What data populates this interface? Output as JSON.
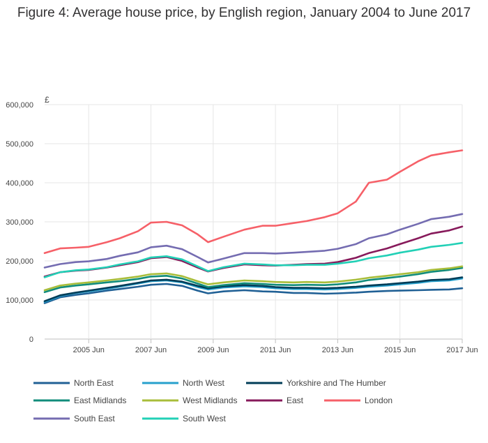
{
  "chart_data": {
    "type": "line",
    "title": "Figure 4: Average house price, by English region, January 2004 to June 2017",
    "ylabel": "£",
    "xlabel": "",
    "ylim": [
      0,
      600000
    ],
    "xlim": [
      "2004-01",
      "2017-06"
    ],
    "x_ticks": [
      {
        "x": "2005-06",
        "label": "2005 Jun"
      },
      {
        "x": "2007-06",
        "label": "2007 Jun"
      },
      {
        "x": "2009-06",
        "label": "2009 Jun"
      },
      {
        "x": "2011-06",
        "label": "2011 Jun"
      },
      {
        "x": "2013-06",
        "label": "2013 Jun"
      },
      {
        "x": "2015-06",
        "label": "2015 Jun"
      },
      {
        "x": "2017-06",
        "label": "2017 Jun"
      }
    ],
    "y_ticks": [
      {
        "value": 0,
        "label": "0"
      },
      {
        "value": 100000,
        "label": "100,000"
      },
      {
        "value": 200000,
        "label": "200,000"
      },
      {
        "value": 300000,
        "label": "300,000"
      },
      {
        "value": 400000,
        "label": "400,000"
      },
      {
        "value": 500000,
        "label": "500,000"
      },
      {
        "value": 600000,
        "label": "600,000"
      }
    ],
    "grid": true,
    "legend_position": "bottom",
    "series": [
      {
        "name": "North East",
        "color": "#206095",
        "points": [
          [
            "2004-01",
            92000
          ],
          [
            "2004-07",
            107000
          ],
          [
            "2005-01",
            113000
          ],
          [
            "2005-06",
            117000
          ],
          [
            "2006-01",
            124000
          ],
          [
            "2006-06",
            128000
          ],
          [
            "2007-01",
            134000
          ],
          [
            "2007-06",
            139000
          ],
          [
            "2007-12",
            141000
          ],
          [
            "2008-06",
            136000
          ],
          [
            "2008-12",
            124000
          ],
          [
            "2009-04",
            117000
          ],
          [
            "2009-10",
            122000
          ],
          [
            "2010-06",
            125000
          ],
          [
            "2011-01",
            122000
          ],
          [
            "2011-06",
            121000
          ],
          [
            "2012-01",
            118000
          ],
          [
            "2012-06",
            118000
          ],
          [
            "2013-01",
            116000
          ],
          [
            "2013-06",
            117000
          ],
          [
            "2014-01",
            119000
          ],
          [
            "2014-06",
            121000
          ],
          [
            "2015-01",
            123000
          ],
          [
            "2015-06",
            124000
          ],
          [
            "2016-01",
            125000
          ],
          [
            "2016-06",
            126000
          ],
          [
            "2017-01",
            127000
          ],
          [
            "2017-06",
            130000
          ]
        ]
      },
      {
        "name": "North West",
        "color": "#27a0cc",
        "points": [
          [
            "2004-01",
            95000
          ],
          [
            "2004-07",
            110000
          ],
          [
            "2005-01",
            118000
          ],
          [
            "2005-06",
            122000
          ],
          [
            "2006-01",
            129000
          ],
          [
            "2006-06",
            134000
          ],
          [
            "2007-01",
            142000
          ],
          [
            "2007-06",
            148000
          ],
          [
            "2007-12",
            150000
          ],
          [
            "2008-06",
            145000
          ],
          [
            "2008-12",
            133000
          ],
          [
            "2009-04",
            127000
          ],
          [
            "2009-10",
            132000
          ],
          [
            "2010-06",
            135000
          ],
          [
            "2011-01",
            133000
          ],
          [
            "2011-06",
            130000
          ],
          [
            "2012-01",
            128000
          ],
          [
            "2012-06",
            128000
          ],
          [
            "2013-01",
            127000
          ],
          [
            "2013-06",
            128000
          ],
          [
            "2014-01",
            131000
          ],
          [
            "2014-06",
            134000
          ],
          [
            "2015-01",
            137000
          ],
          [
            "2015-06",
            140000
          ],
          [
            "2016-01",
            144000
          ],
          [
            "2016-06",
            148000
          ],
          [
            "2017-01",
            150000
          ],
          [
            "2017-06",
            155000
          ]
        ]
      },
      {
        "name": "Yorkshire and The Humber",
        "color": "#003c57",
        "points": [
          [
            "2004-01",
            97000
          ],
          [
            "2004-07",
            112000
          ],
          [
            "2005-01",
            119000
          ],
          [
            "2005-06",
            124000
          ],
          [
            "2006-01",
            131000
          ],
          [
            "2006-06",
            136000
          ],
          [
            "2007-01",
            144000
          ],
          [
            "2007-06",
            150000
          ],
          [
            "2007-12",
            152000
          ],
          [
            "2008-06",
            147000
          ],
          [
            "2008-12",
            136000
          ],
          [
            "2009-04",
            130000
          ],
          [
            "2009-10",
            135000
          ],
          [
            "2010-06",
            138000
          ],
          [
            "2011-01",
            136000
          ],
          [
            "2011-06",
            133000
          ],
          [
            "2012-01",
            131000
          ],
          [
            "2012-06",
            131000
          ],
          [
            "2013-01",
            130000
          ],
          [
            "2013-06",
            131000
          ],
          [
            "2014-01",
            134000
          ],
          [
            "2014-06",
            137000
          ],
          [
            "2015-01",
            140000
          ],
          [
            "2015-06",
            143000
          ],
          [
            "2016-01",
            147000
          ],
          [
            "2016-06",
            151000
          ],
          [
            "2017-01",
            153000
          ],
          [
            "2017-06",
            158000
          ]
        ]
      },
      {
        "name": "East Midlands",
        "color": "#118c7b",
        "points": [
          [
            "2004-01",
            120000
          ],
          [
            "2004-07",
            132000
          ],
          [
            "2005-01",
            137000
          ],
          [
            "2005-06",
            140000
          ],
          [
            "2006-01",
            145000
          ],
          [
            "2006-06",
            148000
          ],
          [
            "2007-01",
            154000
          ],
          [
            "2007-06",
            160000
          ],
          [
            "2007-12",
            162000
          ],
          [
            "2008-06",
            155000
          ],
          [
            "2008-12",
            142000
          ],
          [
            "2009-04",
            133000
          ],
          [
            "2009-10",
            138000
          ],
          [
            "2010-06",
            143000
          ],
          [
            "2011-01",
            141000
          ],
          [
            "2011-06",
            139000
          ],
          [
            "2012-01",
            138000
          ],
          [
            "2012-06",
            139000
          ],
          [
            "2013-01",
            138000
          ],
          [
            "2013-06",
            140000
          ],
          [
            "2014-01",
            145000
          ],
          [
            "2014-06",
            151000
          ],
          [
            "2015-01",
            156000
          ],
          [
            "2015-06",
            160000
          ],
          [
            "2016-01",
            166000
          ],
          [
            "2016-06",
            172000
          ],
          [
            "2017-01",
            177000
          ],
          [
            "2017-06",
            182000
          ]
        ]
      },
      {
        "name": "West Midlands",
        "color": "#a8bd3a",
        "points": [
          [
            "2004-01",
            125000
          ],
          [
            "2004-07",
            137000
          ],
          [
            "2005-01",
            142000
          ],
          [
            "2005-06",
            145000
          ],
          [
            "2006-01",
            150000
          ],
          [
            "2006-06",
            154000
          ],
          [
            "2007-01",
            160000
          ],
          [
            "2007-06",
            166000
          ],
          [
            "2007-12",
            168000
          ],
          [
            "2008-06",
            161000
          ],
          [
            "2008-12",
            148000
          ],
          [
            "2009-04",
            140000
          ],
          [
            "2009-10",
            145000
          ],
          [
            "2010-06",
            150000
          ],
          [
            "2011-01",
            148000
          ],
          [
            "2011-06",
            146000
          ],
          [
            "2012-01",
            145000
          ],
          [
            "2012-06",
            146000
          ],
          [
            "2013-01",
            145000
          ],
          [
            "2013-06",
            147000
          ],
          [
            "2014-01",
            152000
          ],
          [
            "2014-06",
            157000
          ],
          [
            "2015-01",
            162000
          ],
          [
            "2015-06",
            166000
          ],
          [
            "2016-01",
            171000
          ],
          [
            "2016-06",
            177000
          ],
          [
            "2017-01",
            181000
          ],
          [
            "2017-06",
            186000
          ]
        ]
      },
      {
        "name": "East",
        "color": "#871a5b",
        "points": [
          [
            "2004-01",
            160000
          ],
          [
            "2004-07",
            171000
          ],
          [
            "2005-01",
            175000
          ],
          [
            "2005-06",
            177000
          ],
          [
            "2006-01",
            183000
          ],
          [
            "2006-06",
            189000
          ],
          [
            "2007-01",
            197000
          ],
          [
            "2007-06",
            207000
          ],
          [
            "2007-12",
            210000
          ],
          [
            "2008-06",
            200000
          ],
          [
            "2008-12",
            183000
          ],
          [
            "2009-04",
            173000
          ],
          [
            "2009-10",
            182000
          ],
          [
            "2010-06",
            191000
          ],
          [
            "2011-01",
            189000
          ],
          [
            "2011-06",
            188000
          ],
          [
            "2012-01",
            190000
          ],
          [
            "2012-06",
            192000
          ],
          [
            "2013-01",
            193000
          ],
          [
            "2013-06",
            197000
          ],
          [
            "2014-01",
            208000
          ],
          [
            "2014-06",
            220000
          ],
          [
            "2015-01",
            232000
          ],
          [
            "2015-06",
            243000
          ],
          [
            "2016-01",
            258000
          ],
          [
            "2016-06",
            270000
          ],
          [
            "2017-01",
            278000
          ],
          [
            "2017-06",
            288000
          ]
        ]
      },
      {
        "name": "London",
        "color": "#f66068",
        "points": [
          [
            "2004-01",
            220000
          ],
          [
            "2004-07",
            232000
          ],
          [
            "2005-01",
            234000
          ],
          [
            "2005-06",
            236000
          ],
          [
            "2006-01",
            248000
          ],
          [
            "2006-06",
            258000
          ],
          [
            "2007-01",
            276000
          ],
          [
            "2007-06",
            298000
          ],
          [
            "2007-12",
            300000
          ],
          [
            "2008-06",
            291000
          ],
          [
            "2008-12",
            268000
          ],
          [
            "2009-04",
            248000
          ],
          [
            "2009-10",
            262000
          ],
          [
            "2010-06",
            280000
          ],
          [
            "2011-01",
            290000
          ],
          [
            "2011-06",
            290000
          ],
          [
            "2012-01",
            297000
          ],
          [
            "2012-06",
            302000
          ],
          [
            "2013-01",
            312000
          ],
          [
            "2013-06",
            322000
          ],
          [
            "2014-01",
            352000
          ],
          [
            "2014-06",
            400000
          ],
          [
            "2015-01",
            408000
          ],
          [
            "2015-06",
            428000
          ],
          [
            "2016-01",
            455000
          ],
          [
            "2016-06",
            470000
          ],
          [
            "2017-01",
            478000
          ],
          [
            "2017-06",
            483000
          ]
        ]
      },
      {
        "name": "South East",
        "color": "#746cb1",
        "points": [
          [
            "2004-01",
            183000
          ],
          [
            "2004-07",
            192000
          ],
          [
            "2005-01",
            197000
          ],
          [
            "2005-06",
            199000
          ],
          [
            "2006-01",
            205000
          ],
          [
            "2006-06",
            213000
          ],
          [
            "2007-01",
            222000
          ],
          [
            "2007-06",
            235000
          ],
          [
            "2007-12",
            239000
          ],
          [
            "2008-06",
            230000
          ],
          [
            "2008-12",
            210000
          ],
          [
            "2009-04",
            196000
          ],
          [
            "2009-10",
            206000
          ],
          [
            "2010-06",
            220000
          ],
          [
            "2011-01",
            220000
          ],
          [
            "2011-06",
            219000
          ],
          [
            "2012-01",
            221000
          ],
          [
            "2012-06",
            223000
          ],
          [
            "2013-01",
            226000
          ],
          [
            "2013-06",
            231000
          ],
          [
            "2014-01",
            243000
          ],
          [
            "2014-06",
            258000
          ],
          [
            "2015-01",
            268000
          ],
          [
            "2015-06",
            280000
          ],
          [
            "2016-01",
            295000
          ],
          [
            "2016-06",
            307000
          ],
          [
            "2017-01",
            313000
          ],
          [
            "2017-06",
            320000
          ]
        ]
      },
      {
        "name": "South West",
        "color": "#22d0b6",
        "points": [
          [
            "2004-01",
            158000
          ],
          [
            "2004-07",
            171000
          ],
          [
            "2005-01",
            176000
          ],
          [
            "2005-06",
            178000
          ],
          [
            "2006-01",
            184000
          ],
          [
            "2006-06",
            191000
          ],
          [
            "2007-01",
            199000
          ],
          [
            "2007-06",
            209000
          ],
          [
            "2007-12",
            212000
          ],
          [
            "2008-06",
            204000
          ],
          [
            "2008-12",
            186000
          ],
          [
            "2009-04",
            174000
          ],
          [
            "2009-10",
            184000
          ],
          [
            "2010-06",
            193000
          ],
          [
            "2011-01",
            191000
          ],
          [
            "2011-06",
            189000
          ],
          [
            "2012-01",
            189000
          ],
          [
            "2012-06",
            190000
          ],
          [
            "2013-01",
            190000
          ],
          [
            "2013-06",
            193000
          ],
          [
            "2014-01",
            199000
          ],
          [
            "2014-06",
            207000
          ],
          [
            "2015-01",
            214000
          ],
          [
            "2015-06",
            221000
          ],
          [
            "2016-01",
            229000
          ],
          [
            "2016-06",
            236000
          ],
          [
            "2017-01",
            241000
          ],
          [
            "2017-06",
            246000
          ]
        ]
      }
    ]
  }
}
